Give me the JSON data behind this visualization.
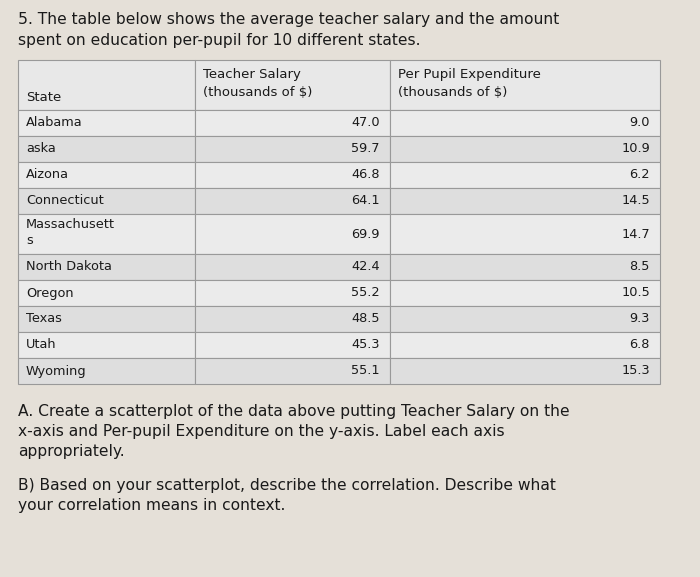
{
  "title_line1": "5. The table below shows the average teacher salary and the amount",
  "title_line2": "spent on education per-pupil for 10 different states.",
  "col_headers_row1": [
    "",
    "Teacher Salary",
    "Per Pupil Expenditure"
  ],
  "col_headers_row2": [
    "State",
    "(thousands of $)",
    "(thousands of $)"
  ],
  "rows": [
    [
      "Alabama",
      "47.0",
      "9.0"
    ],
    [
      "aska",
      "59.7",
      "10.9"
    ],
    [
      "Aizona",
      "46.8",
      "6.2"
    ],
    [
      "Connecticut",
      "64.1",
      "14.5"
    ],
    [
      "Massachusett\ns",
      "69.9",
      "14.7"
    ],
    [
      "North Dakota",
      "42.4",
      "8.5"
    ],
    [
      "Oregon",
      "55.2",
      "10.5"
    ],
    [
      "Texas",
      "48.5",
      "9.3"
    ],
    [
      "Utah",
      "45.3",
      "6.8"
    ],
    [
      "Wyoming",
      "55.1",
      "15.3"
    ]
  ],
  "question_A_lines": [
    "A. Create a scatterplot of the data above putting Teacher Salary on the",
    "x-axis and Per-pupil Expenditure on the y-axis. Label each axis",
    "appropriately."
  ],
  "question_B_lines": [
    "B) Based on your scatterplot, describe the correlation. Describe what",
    "your correlation means in context."
  ],
  "bg_color": "#e5e0d8",
  "table_bg_light": "#ebebeb",
  "table_bg_dark": "#dedede",
  "text_color": "#1a1a1a",
  "border_color": "#999999",
  "header_bg": "#e8e8e8"
}
